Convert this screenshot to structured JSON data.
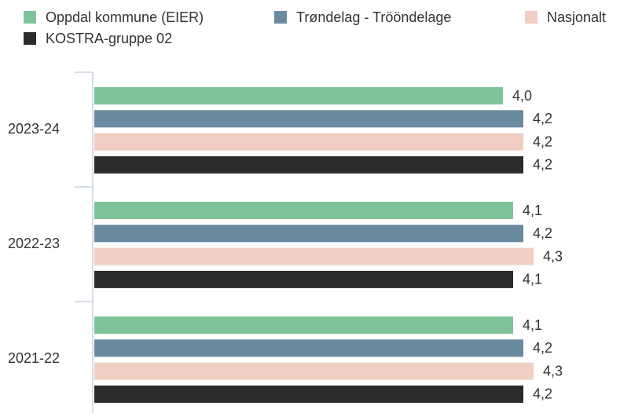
{
  "chart_data": {
    "type": "hbar",
    "categories": [
      "2023-24",
      "2022-23",
      "2021-22"
    ],
    "series": [
      {
        "name": "Oppdal kommune (EIER)",
        "color": "#7dc49a",
        "values": [
          4.0,
          4.1,
          4.1
        ],
        "value_labels": [
          "4,0",
          "4,1",
          "4,1"
        ]
      },
      {
        "name": "Trøndelag - Trööndelage",
        "color": "#6a8aa0",
        "values": [
          4.2,
          4.2,
          4.2
        ],
        "value_labels": [
          "4,2",
          "4,2",
          "4,2"
        ]
      },
      {
        "name": "Nasjonalt",
        "color": "#f0cfc2",
        "values": [
          4.2,
          4.3,
          4.3
        ],
        "value_labels": [
          "4,2",
          "4,3",
          "4,3"
        ]
      },
      {
        "name": "KOSTRA-gruppe 02",
        "color": "#2b2b2b",
        "values": [
          4.2,
          4.1,
          4.2
        ],
        "value_labels": [
          "4,2",
          "4,1",
          "4,2"
        ]
      }
    ],
    "xlim": [
      0,
      5
    ]
  }
}
